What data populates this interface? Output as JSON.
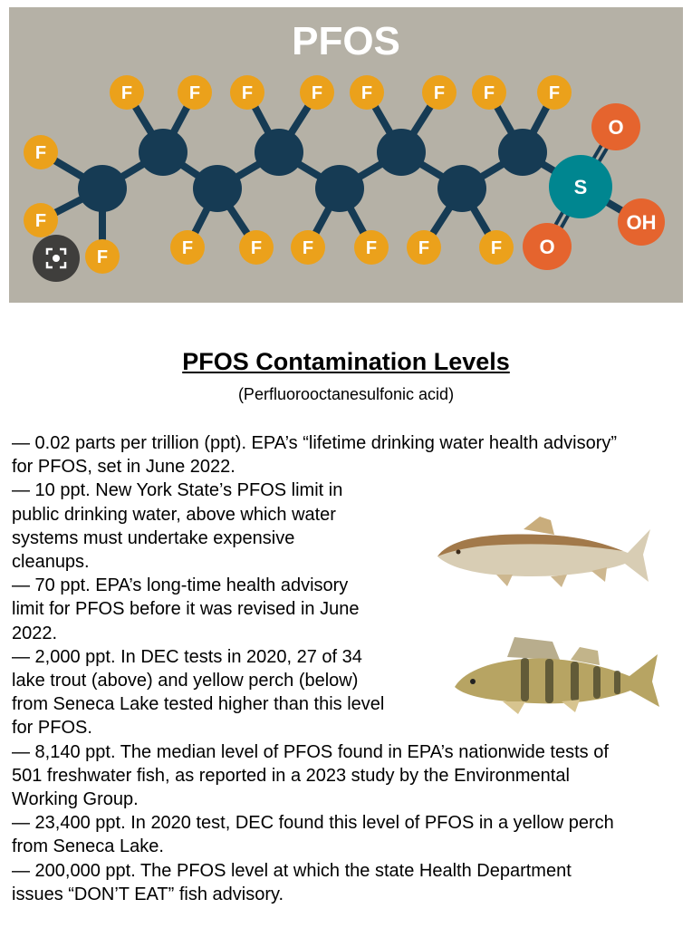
{
  "header_image": {
    "title": "PFOS",
    "atoms": {
      "fluorine": "F",
      "oxygen": "O",
      "sulfur": "S",
      "hydroxyl": "OH"
    },
    "colors": {
      "background": "#b5b1a6",
      "carbon": "#163b54",
      "fluorine": "#eba11b",
      "sulfur": "#008690",
      "oxygen": "#e5642e",
      "title": "#ffffff"
    },
    "overlay_icon": "visual-search-lens-icon"
  },
  "heading": "PFOS Contamination Levels",
  "subheading": "(Perfluorooctanesulfonic acid)",
  "items": [
    {
      "lines": [
        "— 0.02 parts per trillion (ppt). EPA’s “lifetime drinking water health advisory”",
        "for PFOS, set in June 2022."
      ]
    },
    {
      "lines": [
        "— 10 ppt. New York State’s PFOS limit in",
        "public drinking water, above which water",
        "systems must undertake expensive",
        "cleanups."
      ]
    },
    {
      "lines": [
        "— 70 ppt. EPA’s long-time health advisory",
        "limit for PFOS before it was revised in June",
        "2022."
      ]
    },
    {
      "lines": [
        "— 2,000 ppt. In DEC tests in 2020, 27 of 34",
        "lake trout (above) and yellow perch (below)",
        "from Seneca Lake tested higher than this level",
        "for PFOS."
      ]
    },
    {
      "lines": [
        "— 8,140 ppt. The median level of PFOS found in EPA’s nationwide tests of",
        "501 freshwater fish, as reported in a 2023 study by the Environmental",
        "Working Group."
      ]
    },
    {
      "lines": [
        "— 23,400 ppt. In 2020 test, DEC found this level of PFOS in a yellow perch",
        "from Seneca Lake."
      ]
    },
    {
      "lines": [
        "— 200,000 ppt. The PFOS level at which the state Health Department",
        "issues “DON’T EAT” fish advisory."
      ]
    }
  ],
  "images": {
    "top_fish": "lake-trout",
    "bottom_fish": "yellow-perch"
  }
}
